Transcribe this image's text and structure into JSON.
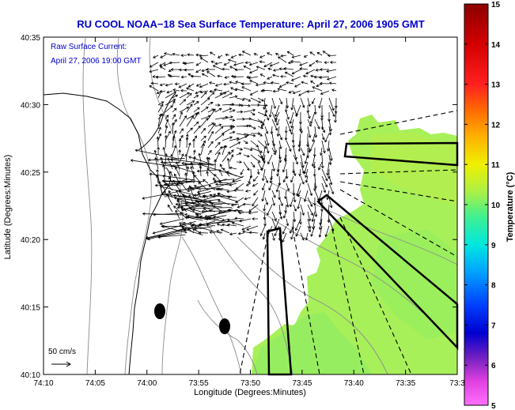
{
  "title": "RU COOL  NOAA−18  Sea Surface Temperature:  April 27, 2006 1905 GMT",
  "legend_line1": "Raw Surface Current:",
  "legend_line2": "April 27, 2006 19:00 GMT",
  "scale_label": "50 cm/s",
  "xlabel": "Longitude (Degrees:Minutes)",
  "ylabel": "Latitude (Degrees:Minutes)",
  "colorbar": {
    "label": "Temperature (°C)",
    "ticks": [
      "15",
      "14",
      "13",
      "12",
      "11",
      "10",
      "9",
      "8",
      "7",
      "6",
      "5"
    ]
  },
  "x_ticks": [
    "74:10",
    "74:05",
    "74:00",
    "73:55",
    "73:50",
    "73:45",
    "73:40",
    "73:35",
    "73:3"
  ],
  "y_ticks": [
    "40:35",
    "40:30",
    "40:25",
    "40:20",
    "40:15",
    "40:10"
  ],
  "colors": {
    "title": "#0000cc",
    "sst_green": "#9cf058",
    "sst_yellowgreen": "#c6f040"
  }
}
